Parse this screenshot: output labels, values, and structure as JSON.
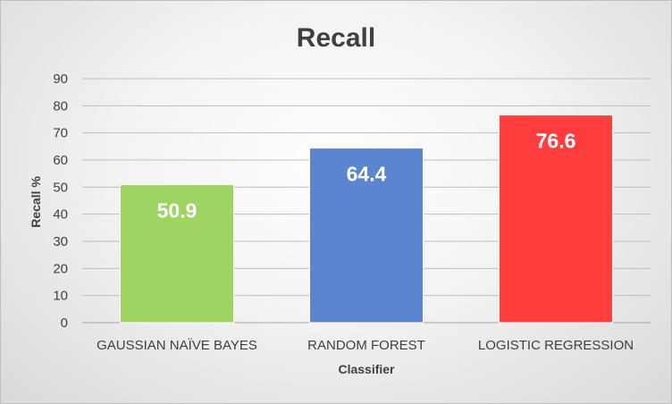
{
  "chart_data": {
    "type": "bar",
    "title": "Recall",
    "xlabel": "Classifier",
    "ylabel": "Recall %",
    "ylim": [
      0,
      90
    ],
    "yticks": [
      0,
      10,
      20,
      30,
      40,
      50,
      60,
      70,
      80,
      90
    ],
    "grid": true,
    "legend": "none",
    "categories": [
      "GAUSSIAN NAÏVE BAYES",
      "RANDOM FOREST",
      "LOGISTIC REGRESSION"
    ],
    "values": [
      50.9,
      64.4,
      76.6
    ],
    "data_labels": [
      "50.9",
      "64.4",
      "76.6"
    ],
    "colors": [
      "#9dd462",
      "#5b86cf",
      "#ff3d3d"
    ]
  }
}
